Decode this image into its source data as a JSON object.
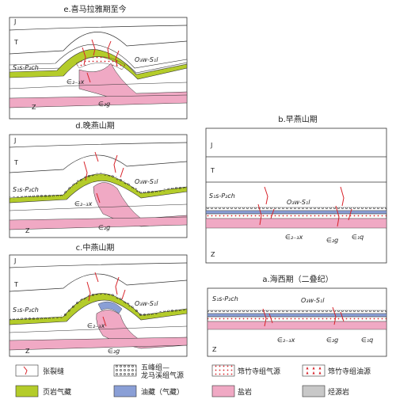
{
  "panels": {
    "e": {
      "title": "e.喜马拉雅期至今",
      "labels": {
        "J": "J",
        "T": "T",
        "s1": "S₁s-P₂ch",
        "o3": "O₃w-S₁l",
        "e23": "∈₂₋₃x",
        "e2g": "∈₂g",
        "z": "Z"
      }
    },
    "d": {
      "title": "d.晚燕山期",
      "labels": {
        "J": "J",
        "T": "T",
        "s1": "S₁s-P₂ch",
        "o3": "O₃w-S₁l",
        "e23": "∈₂₋₃x",
        "e2g": "∈₂g",
        "z": "Z"
      }
    },
    "c": {
      "title": "c.中燕山期",
      "labels": {
        "J": "J",
        "T": "T",
        "s1": "S₁s-P₂ch",
        "o3": "O₃w-S₁l",
        "e23": "∈₂₋₃x",
        "e2g": "∈₂g",
        "z": "Z"
      }
    },
    "b": {
      "title": "b.早燕山期",
      "labels": {
        "J": "J",
        "T": "T",
        "s1": "S₁s-P₂ch",
        "o3": "O₃w-S₁l",
        "e23": "∈₂₋₃x",
        "e2g": "∈₂g",
        "e1q": "∈₁q",
        "z": "Z"
      }
    },
    "a": {
      "title": "a.海西期（二叠纪）",
      "labels": {
        "s1": "S₁s-P₂ch",
        "o3": "O₃w-S₁l",
        "e23": "∈₂₋₃x",
        "e2g": "∈₂g",
        "e1q": "∈₁q",
        "z": "Z"
      }
    }
  },
  "legend": [
    {
      "key": "fracture",
      "label": "张裂缝"
    },
    {
      "key": "wufeng",
      "label": "五峰组—龙马溪组气源"
    },
    {
      "key": "qzs_gas",
      "label": "筇竹寺组气源"
    },
    {
      "key": "qzs_oil",
      "label": "筇竹寺组油源"
    },
    {
      "key": "shale_gas",
      "label": "页岩气藏"
    },
    {
      "key": "oil_gas",
      "label": "油藏（气藏）"
    },
    {
      "key": "salt",
      "label": "盐岩"
    },
    {
      "key": "source_rock",
      "label": "烃源岩"
    }
  ],
  "colors": {
    "shale": "#b4cc2a",
    "salt": "#f0a9c4",
    "oil": "#8a9fd6",
    "source": "#c8c8c8",
    "fracture": "#d8232a",
    "outline": "#333333"
  }
}
